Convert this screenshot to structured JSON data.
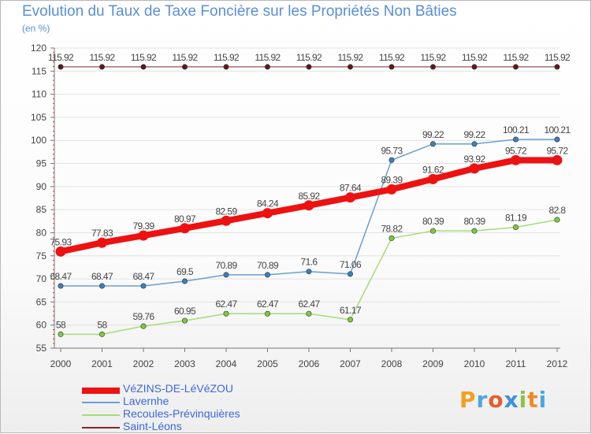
{
  "title": "Evolution du Taux de Taxe Foncière sur les Propriétés Non Bâties",
  "subtitle": "(en %)",
  "logo": "Proxiti",
  "colors": {
    "title": "#5a8fd6",
    "legend_text": "#3c68d9",
    "axis": "#666666",
    "label": "#444444"
  },
  "chart_data": {
    "type": "line",
    "title": "Evolution du Taux de Taxe Foncière sur les Propriétés Non Bâties",
    "ylabel": "(en %)",
    "xlabel": "",
    "ylim": [
      55,
      120
    ],
    "y_ticks": [
      55,
      60,
      65,
      70,
      75,
      80,
      85,
      90,
      95,
      100,
      105,
      110,
      115,
      120
    ],
    "categories": [
      "2000",
      "2001",
      "2002",
      "2003",
      "2004",
      "2005",
      "2006",
      "2007",
      "2008",
      "2009",
      "2010",
      "2011",
      "2012"
    ],
    "series": [
      {
        "name": "Saint-Léons",
        "color": "#7b2a2a",
        "marker": "#5a1a1a",
        "width": 1,
        "values": [
          115.92,
          115.92,
          115.92,
          115.92,
          115.92,
          115.92,
          115.92,
          115.92,
          115.92,
          115.92,
          115.92,
          115.92,
          115.92
        ],
        "labels": [
          "115.92",
          "115.92",
          "115.92",
          "115.92",
          "115.92",
          "115.92",
          "115.92",
          "115.92",
          "115.92",
          "115.92",
          "115.92",
          "115.92",
          "115.92"
        ]
      },
      {
        "name": "Lavernhe",
        "color": "#6a9fd0",
        "marker": "#3a7fc0",
        "width": 1.5,
        "values": [
          68.47,
          68.47,
          68.47,
          69.5,
          70.89,
          70.89,
          71.6,
          71.06,
          95.73,
          99.22,
          99.22,
          100.21,
          100.21
        ],
        "labels": [
          "68.47",
          "68.47",
          "68.47",
          "69.5",
          "70.89",
          "70.89",
          "71.6",
          "71.06",
          "95.73",
          "99.22",
          "99.22",
          "100.21",
          "100.21"
        ]
      },
      {
        "name": "Recoules-Prévinquières",
        "color": "#a6dc7a",
        "marker": "#7ccc3a",
        "width": 1.5,
        "values": [
          58,
          58,
          59.76,
          60.95,
          62.47,
          62.47,
          62.47,
          61.17,
          78.82,
          80.39,
          80.39,
          81.19,
          82.8
        ],
        "labels": [
          "58",
          "58",
          "59.76",
          "60.95",
          "62.47",
          "62.47",
          "62.47",
          "61.17",
          "78.82",
          "80.39",
          "80.39",
          "81.19",
          "82.8"
        ]
      },
      {
        "name": "VéZINS-DE-LéVéZOU",
        "color": "#ee1111",
        "marker": "#ee1111",
        "width": 8,
        "values": [
          75.93,
          77.83,
          79.39,
          80.97,
          82.59,
          84.24,
          85.92,
          87.64,
          89.39,
          91.62,
          93.92,
          95.72,
          95.72
        ],
        "labels": [
          "75.93",
          "77.83",
          "79.39",
          "80.97",
          "82.59",
          "84.24",
          "85.92",
          "87.64",
          "89.39",
          "91.62",
          "93.92",
          "95.72",
          "95.72"
        ]
      }
    ],
    "legend": [
      "VéZINS-DE-LéVéZOU",
      "Lavernhe",
      "Recoules-Prévinquières",
      "Saint-Léons"
    ]
  }
}
